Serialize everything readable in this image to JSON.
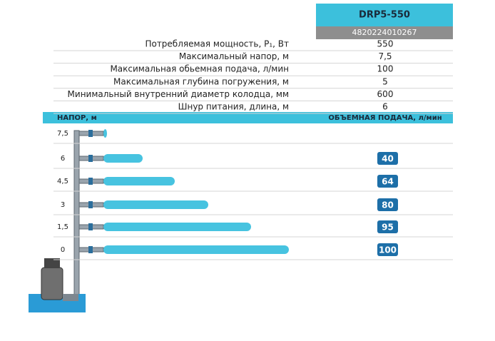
{
  "header": {
    "model": "DRP5-550",
    "code": "4820224010267"
  },
  "specs": [
    {
      "label": "Потребляемая мощность, P₁, Вт",
      "value": "550"
    },
    {
      "label": "Максимальный напор, м",
      "value": "7,5"
    },
    {
      "label": "Максимальная обьемная подача, л/мин",
      "value": "100"
    },
    {
      "label": "Максимальная глубина погружения, м",
      "value": "5"
    },
    {
      "label": "Минимальный внутренний диаметр колодца, мм",
      "value": "600"
    },
    {
      "label": "Шнур питания, длина, м",
      "value": "6"
    }
  ],
  "flow_table": {
    "head_label": "НАПОР, м",
    "flow_label": "ОБЪЕМНАЯ ПОДАЧА, л/мин",
    "rows": [
      {
        "head": "7,5",
        "flow": null
      },
      {
        "head": "6",
        "flow": "40"
      },
      {
        "head": "4,5",
        "flow": "64"
      },
      {
        "head": "3",
        "flow": "80"
      },
      {
        "head": "1,5",
        "flow": "95"
      },
      {
        "head": "0",
        "flow": "100"
      }
    ]
  }
}
